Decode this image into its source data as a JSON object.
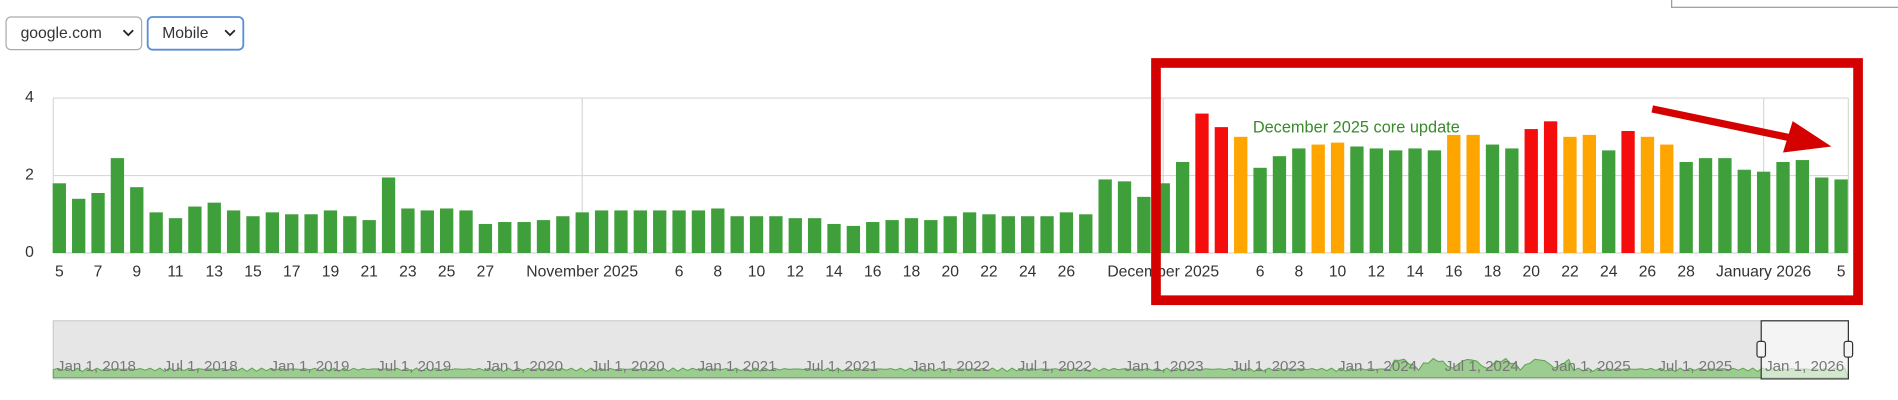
{
  "controls": {
    "site": "google.com",
    "device": "Mobile"
  },
  "chart_data": {
    "type": "bar",
    "annotation": "December 2025 core update",
    "categories": [
      "5",
      null,
      "7",
      null,
      "9",
      null,
      "11",
      null,
      "13",
      null,
      "15",
      null,
      "17",
      null,
      "19",
      null,
      "21",
      null,
      "23",
      null,
      "25",
      null,
      "27",
      null,
      null,
      null,
      null,
      "November 2025",
      null,
      null,
      null,
      null,
      "6",
      null,
      "8",
      null,
      "10",
      null,
      "12",
      null,
      "14",
      null,
      "16",
      null,
      "18",
      null,
      "20",
      null,
      "22",
      null,
      "24",
      null,
      "26",
      null,
      null,
      null,
      null,
      "December 2025",
      null,
      null,
      null,
      null,
      "6",
      null,
      "8",
      null,
      "10",
      null,
      "12",
      null,
      "14",
      null,
      "16",
      null,
      "18",
      null,
      "20",
      null,
      "22",
      null,
      "24",
      null,
      "26",
      null,
      "28",
      null,
      null,
      null,
      "January 2026",
      null,
      null,
      null,
      "5"
    ],
    "values": [
      1.8,
      1.4,
      1.55,
      2.45,
      1.7,
      1.05,
      0.9,
      1.2,
      1.3,
      1.1,
      0.95,
      1.05,
      1.0,
      1.0,
      1.1,
      0.95,
      0.85,
      1.95,
      1.15,
      1.1,
      1.15,
      1.1,
      0.75,
      0.8,
      0.8,
      0.85,
      0.95,
      1.05,
      1.1,
      1.1,
      1.1,
      1.1,
      1.1,
      1.1,
      1.15,
      0.95,
      0.95,
      0.95,
      0.9,
      0.9,
      0.75,
      0.7,
      0.8,
      0.85,
      0.9,
      0.85,
      0.95,
      1.05,
      1.0,
      0.95,
      0.95,
      0.95,
      1.05,
      1.0,
      1.9,
      1.85,
      1.45,
      1.8,
      2.35,
      3.6,
      3.25,
      3.0,
      2.2,
      2.5,
      2.7,
      2.8,
      2.85,
      2.75,
      2.7,
      2.65,
      2.7,
      2.65,
      3.05,
      3.05,
      2.8,
      2.7,
      3.2,
      3.4,
      3.0,
      3.05,
      2.65,
      3.15,
      3.0,
      2.8,
      2.35,
      2.45,
      2.45,
      2.15,
      2.1,
      2.35,
      2.4,
      1.95,
      1.9
    ],
    "colors": [
      "#3f9f3b",
      "#3f9f3b",
      "#3f9f3b",
      "#3f9f3b",
      "#3f9f3b",
      "#3f9f3b",
      "#3f9f3b",
      "#3f9f3b",
      "#3f9f3b",
      "#3f9f3b",
      "#3f9f3b",
      "#3f9f3b",
      "#3f9f3b",
      "#3f9f3b",
      "#3f9f3b",
      "#3f9f3b",
      "#3f9f3b",
      "#3f9f3b",
      "#3f9f3b",
      "#3f9f3b",
      "#3f9f3b",
      "#3f9f3b",
      "#3f9f3b",
      "#3f9f3b",
      "#3f9f3b",
      "#3f9f3b",
      "#3f9f3b",
      "#3f9f3b",
      "#3f9f3b",
      "#3f9f3b",
      "#3f9f3b",
      "#3f9f3b",
      "#3f9f3b",
      "#3f9f3b",
      "#3f9f3b",
      "#3f9f3b",
      "#3f9f3b",
      "#3f9f3b",
      "#3f9f3b",
      "#3f9f3b",
      "#3f9f3b",
      "#3f9f3b",
      "#3f9f3b",
      "#3f9f3b",
      "#3f9f3b",
      "#3f9f3b",
      "#3f9f3b",
      "#3f9f3b",
      "#3f9f3b",
      "#3f9f3b",
      "#3f9f3b",
      "#3f9f3b",
      "#3f9f3b",
      "#3f9f3b",
      "#3f9f3b",
      "#3f9f3b",
      "#3f9f3b",
      "#3f9f3b",
      "#3f9f3b",
      "#f50d0d",
      "#f50d0d",
      "#ffa500",
      "#3f9f3b",
      "#3f9f3b",
      "#3f9f3b",
      "#ffa500",
      "#ffa500",
      "#3f9f3b",
      "#3f9f3b",
      "#3f9f3b",
      "#3f9f3b",
      "#3f9f3b",
      "#ffa500",
      "#ffa500",
      "#3f9f3b",
      "#3f9f3b",
      "#f50d0d",
      "#f50d0d",
      "#ffa500",
      "#ffa500",
      "#3f9f3b",
      "#f50d0d",
      "#ffa500",
      "#ffa500",
      "#3f9f3b",
      "#3f9f3b",
      "#3f9f3b",
      "#3f9f3b",
      "#3f9f3b",
      "#3f9f3b",
      "#3f9f3b",
      "#3f9f3b",
      "#3f9f3b"
    ],
    "ylim": [
      0,
      4
    ],
    "yticks": [
      0,
      2,
      4
    ],
    "grid": true
  },
  "navigator": {
    "labels": [
      "Jan 1, 2018",
      "Jul 1, 2018",
      "Jan 1, 2019",
      "Jul 1, 2019",
      "Jan 1, 2020",
      "Jul 1, 2020",
      "Jan 1, 2021",
      "Jul 1, 2021",
      "Jan 1, 2022",
      "Jul 1, 2022",
      "Jan 1, 2023",
      "Jul 1, 2023",
      "Jan 1, 2024",
      "Jul 1, 2024",
      "Jan 1, 2025",
      "Jul 1, 2025",
      "Jan 1, 2026"
    ]
  }
}
